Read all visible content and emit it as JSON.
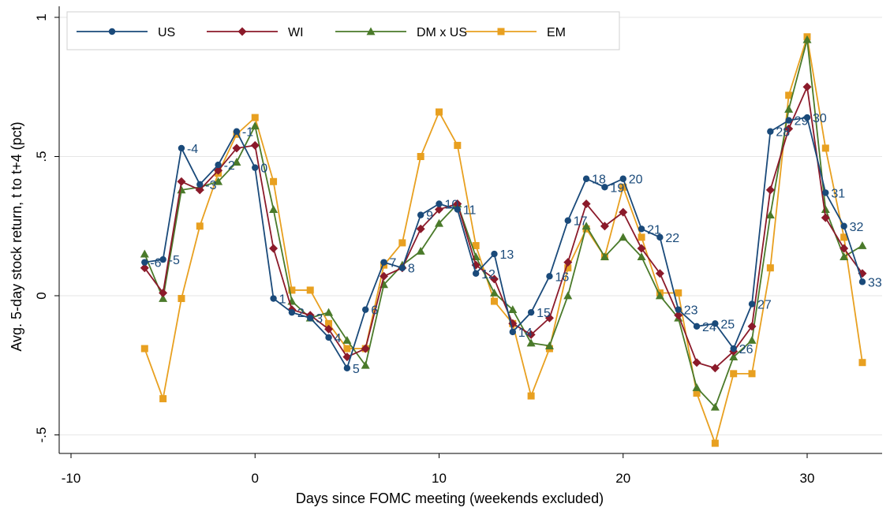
{
  "chart_data": {
    "type": "line",
    "xlabel": "Days since FOMC meeting (weekends excluded)",
    "ylabel": "Avg. 5-day stock return, t to t+4 (pct)",
    "xlim": [
      -10,
      33
    ],
    "ylim": [
      -0.55,
      1.0
    ],
    "x_ticks": [
      -10,
      0,
      10,
      20,
      30
    ],
    "y_ticks": [
      -0.5,
      0,
      0.5,
      1
    ],
    "x_tick_labels": [
      "-10",
      "0",
      "10",
      "20",
      "30"
    ],
    "y_tick_labels": [
      "-.5",
      "0",
      ".5",
      "1"
    ],
    "grid": "horizontal",
    "legend_position": "top",
    "x": [
      -6,
      -5,
      -4,
      -3,
      -2,
      -1,
      0,
      1,
      2,
      3,
      4,
      5,
      6,
      7,
      8,
      9,
      10,
      11,
      12,
      13,
      14,
      15,
      16,
      17,
      18,
      19,
      20,
      21,
      22,
      23,
      24,
      25,
      26,
      27,
      28,
      29,
      30,
      31,
      32,
      33
    ],
    "series": [
      {
        "name": "US",
        "color": "#1a4a7a",
        "marker": "circle",
        "values": [
          0.12,
          0.13,
          0.53,
          0.4,
          0.47,
          0.59,
          0.46,
          -0.01,
          -0.06,
          -0.08,
          -0.15,
          -0.26,
          -0.05,
          0.12,
          0.1,
          0.29,
          0.33,
          0.31,
          0.08,
          0.15,
          -0.13,
          -0.06,
          0.07,
          0.27,
          0.42,
          0.39,
          0.42,
          0.24,
          0.21,
          -0.05,
          -0.11,
          -0.1,
          -0.19,
          -0.03,
          0.59,
          0.63,
          0.64,
          0.37,
          0.25,
          0.05
        ]
      },
      {
        "name": "WI",
        "color": "#8b1a2a",
        "marker": "diamond",
        "values": [
          0.1,
          0.01,
          0.41,
          0.38,
          0.45,
          0.53,
          0.54,
          0.17,
          -0.05,
          -0.07,
          -0.12,
          -0.22,
          -0.19,
          0.07,
          0.1,
          0.24,
          0.31,
          0.33,
          0.11,
          0.06,
          -0.1,
          -0.14,
          -0.08,
          0.12,
          0.33,
          0.25,
          0.3,
          0.17,
          0.08,
          -0.07,
          -0.24,
          -0.26,
          -0.2,
          -0.11,
          0.38,
          0.6,
          0.75,
          0.28,
          0.17,
          0.08
        ]
      },
      {
        "name": "DM x US",
        "color": "#4a7a2a",
        "marker": "triangle",
        "values": [
          0.15,
          -0.01,
          0.38,
          0.39,
          0.41,
          0.48,
          0.61,
          0.31,
          -0.02,
          -0.08,
          -0.06,
          -0.16,
          -0.25,
          0.04,
          0.11,
          0.16,
          0.26,
          0.33,
          0.14,
          0.01,
          -0.05,
          -0.17,
          -0.18,
          0.0,
          0.25,
          0.14,
          0.21,
          0.14,
          0.0,
          -0.08,
          -0.33,
          -0.4,
          -0.22,
          -0.16,
          0.29,
          0.67,
          0.92,
          0.31,
          0.14,
          0.18
        ]
      },
      {
        "name": "EM",
        "color": "#e8a020",
        "marker": "square",
        "values": [
          -0.19,
          -0.37,
          -0.01,
          0.25,
          0.44,
          0.58,
          0.64,
          0.41,
          0.02,
          0.02,
          -0.1,
          -0.19,
          -0.19,
          0.11,
          0.19,
          0.5,
          0.66,
          0.54,
          0.18,
          -0.02,
          -0.1,
          -0.36,
          -0.19,
          0.1,
          0.24,
          0.14,
          0.39,
          0.21,
          0.01,
          0.01,
          -0.35,
          -0.53,
          -0.28,
          -0.28,
          0.1,
          0.72,
          0.93,
          0.53,
          0.21,
          -0.24
        ]
      }
    ],
    "us_point_labels": [
      "-6",
      "-5",
      "-4",
      "-3",
      "-2",
      "-1",
      "0",
      "1",
      "2",
      "3",
      "4",
      "5",
      "6",
      "7",
      "8",
      "9",
      "10",
      "11",
      "12",
      "13",
      "14",
      "15",
      "16",
      "17",
      "18",
      "19",
      "20",
      "21",
      "22",
      "23",
      "24",
      "25",
      "26",
      "27",
      "28",
      "29",
      "30",
      "31",
      "32",
      "33"
    ]
  }
}
